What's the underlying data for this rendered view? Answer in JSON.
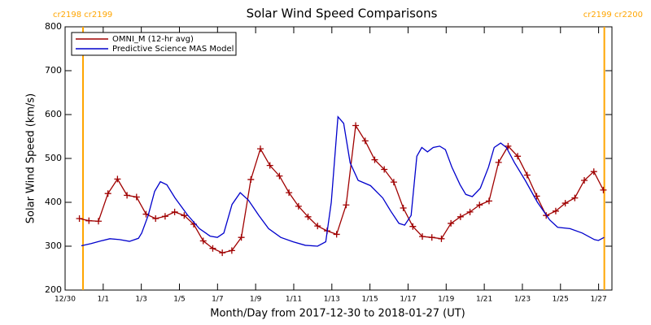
{
  "chart_data": {
    "type": "line",
    "title": "Solar Wind Speed Comparisons",
    "x_label": "Month/Day from 2017-12-30 to 2018-01-27 (UT)",
    "y_label": "Solar Wind Speed (km/s)",
    "xlim": [
      0,
      28.7
    ],
    "xticks": [
      {
        "value": 0,
        "label": "12/30"
      },
      {
        "value": 2,
        "label": "1/1"
      },
      {
        "value": 4,
        "label": "1/3"
      },
      {
        "value": 6,
        "label": "1/5"
      },
      {
        "value": 8,
        "label": "1/7"
      },
      {
        "value": 10,
        "label": "1/9"
      },
      {
        "value": 12,
        "label": "1/11"
      },
      {
        "value": 14,
        "label": "1/13"
      },
      {
        "value": 16,
        "label": "1/15"
      },
      {
        "value": 18,
        "label": "1/17"
      },
      {
        "value": 20,
        "label": "1/19"
      },
      {
        "value": 22,
        "label": "1/21"
      },
      {
        "value": 24,
        "label": "1/23"
      },
      {
        "value": 26,
        "label": "1/25"
      },
      {
        "value": 28,
        "label": "1/27"
      }
    ],
    "ylim": [
      200,
      800
    ],
    "yticks": [
      200,
      300,
      400,
      500,
      600,
      700,
      800
    ],
    "legend": "upper left",
    "annotations": [
      {
        "label": "cr2198 cr2199",
        "x": 0.94,
        "color": "#ffa500"
      },
      {
        "label": "cr2199 cr2200",
        "x": 28.3,
        "color": "#ffa500"
      }
    ],
    "series": [
      {
        "name": "OMNI_M (12-hr avg)",
        "color": "#a00000",
        "marker": "+",
        "x": [
          0.75,
          1.25,
          1.75,
          2.25,
          2.75,
          3.25,
          3.75,
          4.25,
          4.75,
          5.25,
          5.75,
          6.25,
          6.75,
          7.25,
          7.75,
          8.25,
          8.75,
          9.25,
          9.75,
          10.25,
          10.75,
          11.25,
          11.75,
          12.25,
          12.75,
          13.25,
          13.75,
          14.25,
          14.75,
          15.25,
          15.75,
          16.25,
          16.75,
          17.25,
          17.75,
          18.25,
          18.75,
          19.25,
          19.75,
          20.25,
          20.75,
          21.25,
          21.75,
          22.25,
          22.75,
          23.25,
          23.75,
          24.25,
          24.75,
          25.25,
          25.75,
          26.25,
          26.75,
          27.25,
          27.75,
          28.25
        ],
        "values": [
          363,
          358,
          357,
          420,
          453,
          416,
          412,
          373,
          363,
          368,
          378,
          370,
          350,
          312,
          295,
          285,
          290,
          320,
          452,
          522,
          484,
          460,
          422,
          391,
          367,
          346,
          335,
          327,
          394,
          575,
          540,
          497,
          475,
          446,
          387,
          345,
          322,
          320,
          317,
          352,
          367,
          378,
          394,
          403,
          491,
          528,
          505,
          462,
          414,
          370,
          380,
          398,
          410,
          450,
          470,
          428
        ]
      },
      {
        "name": "Predictive Science MAS Model",
        "color": "#0000cc",
        "x": [
          0.85,
          1.37,
          1.88,
          2.35,
          2.86,
          3.38,
          3.85,
          4.02,
          4.36,
          4.7,
          5.0,
          5.34,
          5.77,
          6.41,
          7.05,
          7.61,
          7.99,
          8.33,
          8.76,
          9.19,
          9.62,
          10.17,
          10.68,
          11.32,
          11.97,
          12.61,
          13.25,
          13.68,
          13.97,
          14.32,
          14.62,
          14.96,
          15.38,
          16.03,
          16.67,
          17.09,
          17.52,
          17.82,
          18.16,
          18.46,
          18.72,
          19.02,
          19.32,
          19.66,
          19.96,
          20.3,
          20.73,
          21.03,
          21.37,
          21.79,
          22.22,
          22.52,
          22.86,
          23.16,
          23.59,
          24.15,
          24.79,
          25.43,
          25.85,
          26.5,
          27.14,
          27.78,
          27.99,
          28.29
        ],
        "values": [
          301,
          306,
          312,
          317,
          315,
          311,
          318,
          330,
          370,
          425,
          447,
          440,
          410,
          372,
          340,
          323,
          320,
          330,
          395,
          422,
          405,
          370,
          340,
          320,
          310,
          302,
          300,
          310,
          400,
          595,
          580,
          490,
          450,
          438,
          410,
          380,
          352,
          348,
          370,
          505,
          525,
          515,
          525,
          528,
          520,
          480,
          440,
          418,
          413,
          432,
          480,
          525,
          535,
          525,
          490,
          450,
          400,
          360,
          343,
          340,
          330,
          315,
          313,
          320
        ]
      }
    ]
  }
}
